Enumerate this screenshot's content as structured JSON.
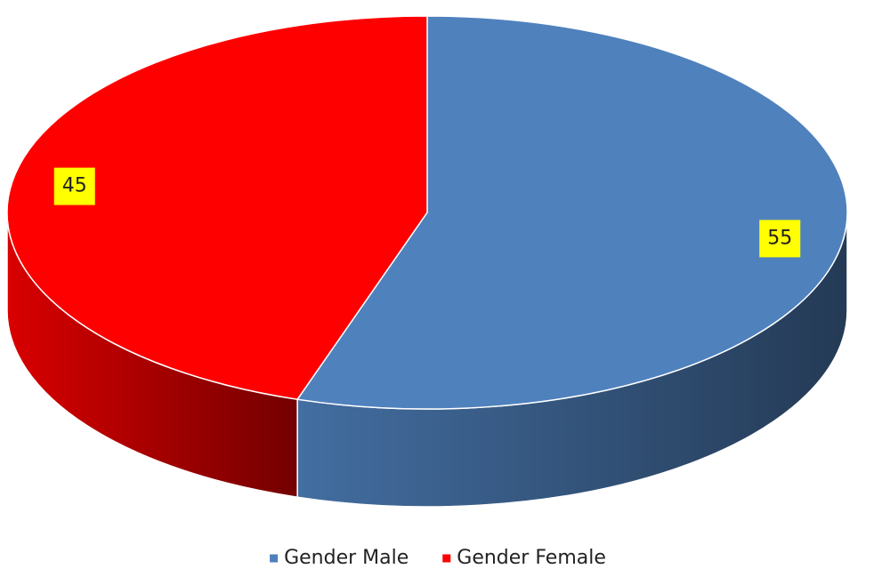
{
  "chart_data": {
    "type": "pie",
    "categories": [
      "Gender Male",
      "Gender Female"
    ],
    "values": [
      55,
      45
    ],
    "colors": [
      "#4f81bd",
      "#ff0000"
    ],
    "legend": "bottom"
  }
}
